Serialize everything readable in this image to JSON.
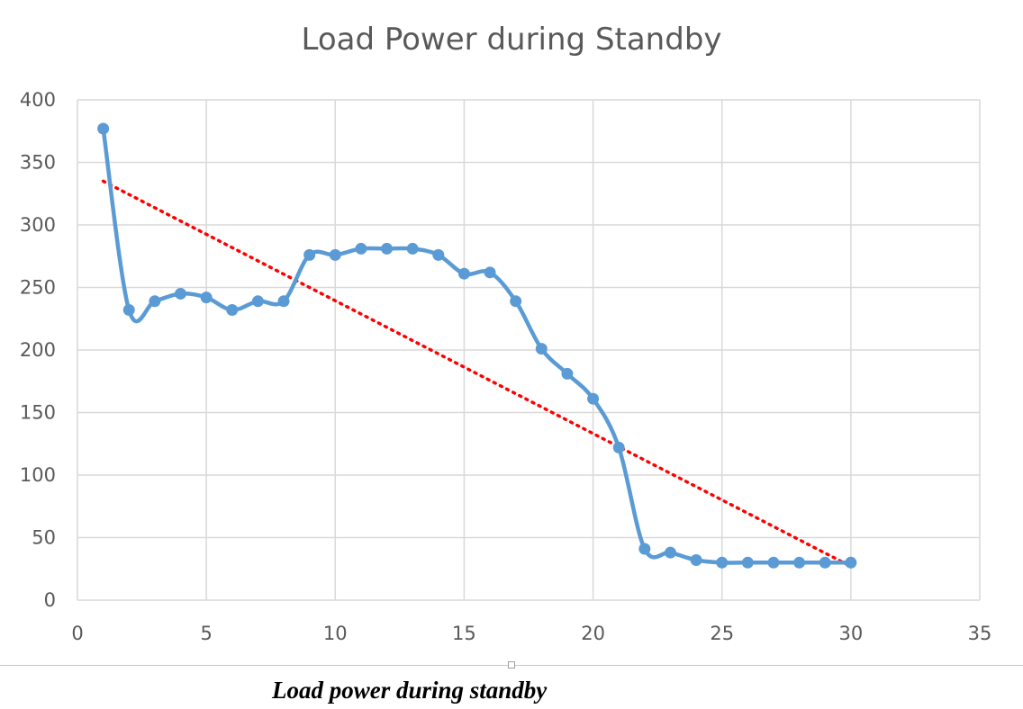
{
  "chart_data": {
    "type": "line",
    "title": "Load Power during Standby",
    "xlabel": "",
    "ylabel": "",
    "xlim": [
      0,
      35
    ],
    "ylim": [
      0,
      400
    ],
    "xticks": [
      0,
      5,
      10,
      15,
      20,
      25,
      30,
      35
    ],
    "yticks": [
      0,
      50,
      100,
      150,
      200,
      250,
      300,
      350,
      400
    ],
    "grid": true,
    "legend": "none",
    "series": [
      {
        "style": "smooth-line-with-markers",
        "color": "#5b9bd5",
        "x": [
          1,
          2,
          3,
          4,
          5,
          6,
          7,
          8,
          9,
          10,
          11,
          12,
          13,
          14,
          15,
          16,
          17,
          18,
          19,
          20,
          21,
          22,
          23,
          24,
          25,
          26,
          27,
          28,
          29,
          30
        ],
        "y": [
          377,
          232,
          239,
          245,
          242,
          232,
          239,
          239,
          276,
          276,
          281,
          281,
          281,
          276,
          261,
          262,
          239,
          201,
          181,
          161,
          122,
          41,
          38,
          32,
          30,
          30,
          30,
          30,
          30,
          30
        ]
      },
      {
        "style": "dotted-trendline",
        "color": "#ff0000",
        "x": [
          1,
          30
        ],
        "y": [
          335,
          27
        ]
      }
    ]
  },
  "caption": "Load power during standby"
}
